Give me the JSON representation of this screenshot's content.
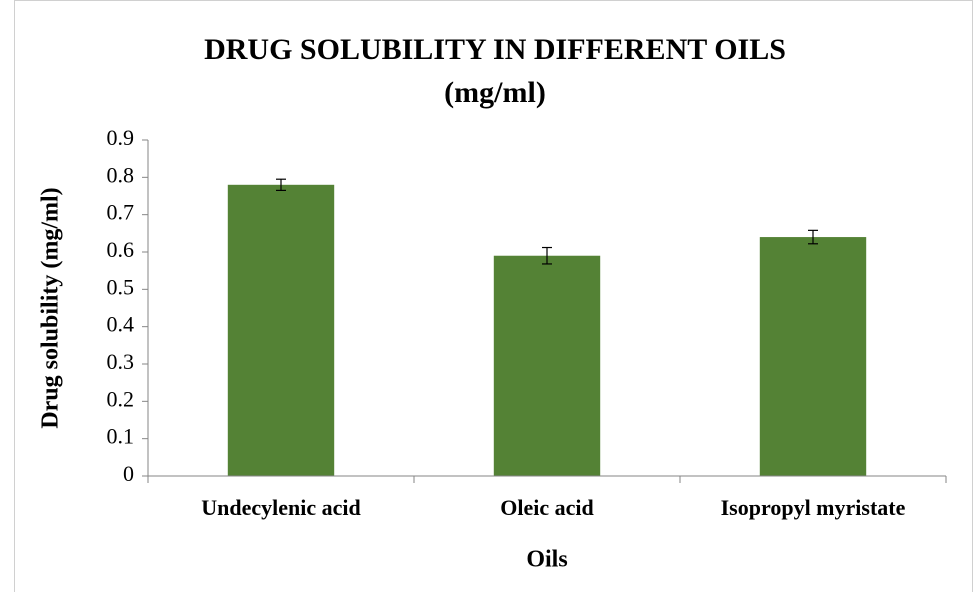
{
  "chart_data": {
    "type": "bar",
    "title": [
      "DRUG SOLUBILITY IN DIFFERENT OILS",
      "(mg/ml)"
    ],
    "xlabel": "Oils",
    "ylabel": "Drug solubility (mg/ml)",
    "categories": [
      "Undecylenic acid",
      "Oleic acid",
      "Isopropyl myristate"
    ],
    "values": [
      0.78,
      0.59,
      0.64
    ],
    "errors": [
      0.015,
      0.022,
      0.018
    ],
    "color": "#548235",
    "ylim": [
      0,
      0.9
    ],
    "yticks": [
      0,
      0.1,
      0.2,
      0.3,
      0.4,
      0.5,
      0.6,
      0.7,
      0.8,
      0.9
    ],
    "grid": false
  }
}
